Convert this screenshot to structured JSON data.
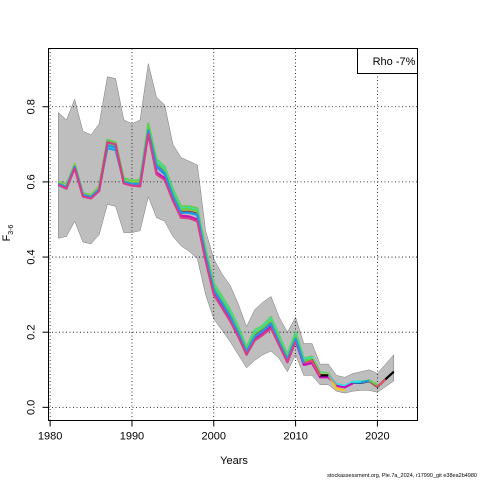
{
  "chart_data": {
    "type": "line",
    "title": "",
    "xlabel": "Years",
    "ylabel": "F",
    "ylabel_subscript": "3-6",
    "xlim": [
      1979.8,
      2024.9
    ],
    "ylim": [
      -0.035,
      0.955
    ],
    "x_ticks": [
      1980,
      1990,
      2000,
      2010,
      2020
    ],
    "y_ticks": [
      0.0,
      0.2,
      0.4,
      0.6,
      0.8
    ],
    "x_tick_labels": [
      "1980",
      "1990",
      "2000",
      "2010",
      "2020"
    ],
    "y_tick_labels": [
      "0.0",
      "0.2",
      "0.4",
      "0.6",
      "0.8"
    ],
    "grid": "dotted",
    "legend": {
      "text": "Rho -7%",
      "position": "top-right"
    },
    "confidence_band": {
      "color": "#bebebe",
      "x": [
        1981,
        1982,
        1983,
        1984,
        1985,
        1986,
        1987,
        1988,
        1989,
        1990,
        1991,
        1992,
        1993,
        1994,
        1995,
        1996,
        1997,
        1998,
        1999,
        2000,
        2001,
        2002,
        2003,
        2004,
        2005,
        2006,
        2007,
        2008,
        2009,
        2010,
        2011,
        2012,
        2013,
        2014,
        2015,
        2016,
        2017,
        2018,
        2019,
        2020,
        2021,
        2022
      ],
      "lower": [
        0.45,
        0.455,
        0.495,
        0.44,
        0.435,
        0.46,
        0.54,
        0.535,
        0.465,
        0.465,
        0.47,
        0.56,
        0.505,
        0.495,
        0.455,
        0.43,
        0.415,
        0.395,
        0.3,
        0.235,
        0.205,
        0.175,
        0.14,
        0.105,
        0.125,
        0.14,
        0.15,
        0.13,
        0.095,
        0.14,
        0.085,
        0.085,
        0.06,
        0.06,
        0.043,
        0.038,
        0.043,
        0.045,
        0.045,
        0.04,
        0.055,
        0.07
      ],
      "upper": [
        0.785,
        0.765,
        0.82,
        0.735,
        0.725,
        0.755,
        0.88,
        0.875,
        0.765,
        0.755,
        0.765,
        0.915,
        0.825,
        0.805,
        0.7,
        0.665,
        0.655,
        0.645,
        0.47,
        0.395,
        0.355,
        0.325,
        0.275,
        0.215,
        0.26,
        0.28,
        0.295,
        0.24,
        0.2,
        0.24,
        0.17,
        0.17,
        0.115,
        0.115,
        0.085,
        0.08,
        0.09,
        0.095,
        0.1,
        0.09,
        0.115,
        0.14
      ]
    },
    "series": [
      {
        "color": "#000000",
        "x": [
          1981,
          1982,
          1983,
          1984,
          1985,
          1986,
          1987,
          1988,
          1989,
          1990,
          1991,
          1992,
          1993,
          1994,
          1995,
          1996,
          1997,
          1998,
          1999,
          2000,
          2001,
          2002,
          2003,
          2004,
          2005,
          2006,
          2007,
          2008,
          2009,
          2010,
          2011,
          2012,
          2013,
          2014,
          2015,
          2016,
          2017,
          2018,
          2019,
          2020,
          2021,
          2022
        ],
        "values": [
          0.595,
          0.585,
          0.64,
          0.565,
          0.56,
          0.58,
          0.7,
          0.695,
          0.6,
          0.595,
          0.595,
          0.74,
          0.645,
          0.625,
          0.565,
          0.52,
          0.52,
          0.515,
          0.405,
          0.315,
          0.28,
          0.245,
          0.2,
          0.15,
          0.19,
          0.205,
          0.225,
          0.175,
          0.13,
          0.185,
          0.12,
          0.125,
          0.085,
          0.085,
          0.06,
          0.055,
          0.065,
          0.065,
          0.07,
          0.055,
          0.075,
          0.095
        ]
      },
      {
        "color": "#df536b",
        "x": [
          1981,
          1982,
          1983,
          1984,
          1985,
          1986,
          1987,
          1988,
          1989,
          1990,
          1991,
          1992,
          1993,
          1994,
          1995,
          1996,
          1997,
          1998,
          1999,
          2000,
          2001,
          2002,
          2003,
          2004,
          2005,
          2006,
          2007,
          2008,
          2009,
          2010,
          2011,
          2012,
          2013,
          2014,
          2015,
          2016,
          2017,
          2018,
          2019,
          2020,
          2021
        ],
        "values": [
          0.598,
          0.59,
          0.645,
          0.568,
          0.562,
          0.585,
          0.708,
          0.702,
          0.605,
          0.6,
          0.6,
          0.745,
          0.65,
          0.63,
          0.57,
          0.525,
          0.525,
          0.52,
          0.41,
          0.318,
          0.283,
          0.248,
          0.203,
          0.152,
          0.193,
          0.208,
          0.228,
          0.178,
          0.132,
          0.188,
          0.122,
          0.127,
          0.087,
          0.086,
          0.061,
          0.056,
          0.066,
          0.066,
          0.071,
          0.056,
          0.074
        ]
      },
      {
        "color": "#61d04f",
        "x": [
          1981,
          1982,
          1983,
          1984,
          1985,
          1986,
          1987,
          1988,
          1989,
          1990,
          1991,
          1992,
          1993,
          1994,
          1995,
          1996,
          1997,
          1998,
          1999,
          2000,
          2001,
          2002,
          2003,
          2004,
          2005,
          2006,
          2007,
          2008,
          2009,
          2010,
          2011,
          2012,
          2013,
          2014,
          2015,
          2016,
          2017,
          2018,
          2019,
          2020
        ],
        "values": [
          0.6,
          0.593,
          0.648,
          0.57,
          0.565,
          0.588,
          0.712,
          0.705,
          0.61,
          0.603,
          0.605,
          0.755,
          0.66,
          0.64,
          0.58,
          0.535,
          0.535,
          0.53,
          0.42,
          0.33,
          0.295,
          0.26,
          0.215,
          0.16,
          0.205,
          0.218,
          0.24,
          0.19,
          0.14,
          0.2,
          0.13,
          0.135,
          0.093,
          0.09,
          0.058,
          0.055,
          0.067,
          0.068,
          0.072,
          0.06
        ]
      },
      {
        "color": "#2297e6",
        "x": [
          1981,
          1982,
          1983,
          1984,
          1985,
          1986,
          1987,
          1988,
          1989,
          1990,
          1991,
          1992,
          1993,
          1994,
          1995,
          1996,
          1997,
          1998,
          1999,
          2000,
          2001,
          2002,
          2003,
          2004,
          2005,
          2006,
          2007,
          2008,
          2009,
          2010,
          2011,
          2012,
          2013,
          2014,
          2015,
          2016,
          2017,
          2018,
          2019
        ],
        "values": [
          0.596,
          0.587,
          0.642,
          0.566,
          0.561,
          0.582,
          0.69,
          0.685,
          0.602,
          0.597,
          0.597,
          0.735,
          0.64,
          0.62,
          0.562,
          0.518,
          0.518,
          0.512,
          0.402,
          0.312,
          0.277,
          0.243,
          0.198,
          0.148,
          0.188,
          0.203,
          0.222,
          0.173,
          0.128,
          0.182,
          0.118,
          0.123,
          0.083,
          0.083,
          0.059,
          0.055,
          0.066,
          0.066,
          0.071
        ]
      },
      {
        "color": "#28e2e5",
        "x": [
          1981,
          1982,
          1983,
          1984,
          1985,
          1986,
          1987,
          1988,
          1989,
          1990,
          1991,
          1992,
          1993,
          1994,
          1995,
          1996,
          1997,
          1998,
          1999,
          2000,
          2001,
          2002,
          2003,
          2004,
          2005,
          2006,
          2007,
          2008,
          2009,
          2010,
          2011,
          2012,
          2013,
          2014,
          2015,
          2016,
          2017,
          2018
        ],
        "values": [
          0.597,
          0.588,
          0.643,
          0.567,
          0.562,
          0.583,
          0.695,
          0.69,
          0.604,
          0.598,
          0.598,
          0.745,
          0.655,
          0.635,
          0.575,
          0.53,
          0.53,
          0.525,
          0.415,
          0.325,
          0.29,
          0.255,
          0.21,
          0.158,
          0.2,
          0.215,
          0.235,
          0.185,
          0.137,
          0.195,
          0.127,
          0.132,
          0.09,
          0.088,
          0.062,
          0.057,
          0.068,
          0.069
        ]
      },
      {
        "color": "#cd0bbc",
        "x": [
          1981,
          1982,
          1983,
          1984,
          1985,
          1986,
          1987,
          1988,
          1989,
          1990,
          1991,
          1992,
          1993,
          1994,
          1995,
          1996,
          1997,
          1998,
          1999,
          2000,
          2001,
          2002,
          2003,
          2004,
          2005,
          2006,
          2007,
          2008,
          2009,
          2010,
          2011,
          2012,
          2013,
          2014,
          2015,
          2016,
          2017
        ],
        "values": [
          0.594,
          0.584,
          0.638,
          0.563,
          0.558,
          0.578,
          0.698,
          0.692,
          0.598,
          0.592,
          0.59,
          0.73,
          0.625,
          0.61,
          0.555,
          0.51,
          0.508,
          0.5,
          0.395,
          0.305,
          0.27,
          0.235,
          0.192,
          0.143,
          0.182,
          0.197,
          0.215,
          0.168,
          0.123,
          0.178,
          0.113,
          0.118,
          0.08,
          0.08,
          0.057,
          0.053,
          0.064
        ]
      },
      {
        "color": "#f5c710",
        "x": [
          1981,
          1982,
          1983,
          1984,
          1985,
          1986,
          1987,
          1988,
          1989,
          1990,
          1991,
          1992,
          1993,
          1994,
          1995,
          1996,
          1997,
          1998,
          1999,
          2000,
          2001,
          2002,
          2003,
          2004,
          2005,
          2006,
          2007,
          2008,
          2009,
          2010,
          2011,
          2012,
          2013,
          2014,
          2015,
          2016
        ],
        "values": [
          0.597,
          0.589,
          0.644,
          0.567,
          0.562,
          0.584,
          0.702,
          0.697,
          0.603,
          0.598,
          0.598,
          0.742,
          0.648,
          0.628,
          0.568,
          0.523,
          0.523,
          0.518,
          0.408,
          0.318,
          0.283,
          0.248,
          0.203,
          0.153,
          0.193,
          0.208,
          0.228,
          0.178,
          0.133,
          0.188,
          0.123,
          0.128,
          0.088,
          0.087,
          0.05,
          0.045
        ]
      },
      {
        "color": "#9e9e9e",
        "x": [
          1981,
          1982,
          1983,
          1984,
          1985,
          1986,
          1987,
          1988,
          1989,
          1990,
          1991,
          1992,
          1993,
          1994,
          1995,
          1996,
          1997,
          1998,
          1999,
          2000,
          2001,
          2002,
          2003,
          2004,
          2005,
          2006,
          2007,
          2008,
          2009,
          2010,
          2011,
          2012,
          2013,
          2014,
          2015
        ],
        "values": [
          0.596,
          0.588,
          0.642,
          0.566,
          0.561,
          0.582,
          0.7,
          0.695,
          0.601,
          0.596,
          0.596,
          0.74,
          0.646,
          0.626,
          0.566,
          0.521,
          0.521,
          0.516,
          0.406,
          0.316,
          0.281,
          0.246,
          0.201,
          0.151,
          0.191,
          0.206,
          0.226,
          0.176,
          0.131,
          0.186,
          0.121,
          0.126,
          0.086,
          0.085,
          0.06
        ]
      },
      {
        "color": "#000000",
        "x": [
          1981,
          1982,
          1983,
          1984,
          1985,
          1986,
          1987,
          1988,
          1989,
          1990,
          1991,
          1992,
          1993,
          1994,
          1995,
          1996,
          1997,
          1998,
          1999,
          2000,
          2001,
          2002,
          2003,
          2004,
          2005,
          2006,
          2007,
          2008,
          2009,
          2010,
          2011,
          2012,
          2013,
          2014
        ],
        "values": [
          0.595,
          0.586,
          0.641,
          0.565,
          0.56,
          0.581,
          0.699,
          0.694,
          0.6,
          0.595,
          0.595,
          0.739,
          0.645,
          0.625,
          0.565,
          0.52,
          0.52,
          0.515,
          0.405,
          0.315,
          0.28,
          0.245,
          0.2,
          0.15,
          0.19,
          0.205,
          0.225,
          0.175,
          0.13,
          0.185,
          0.12,
          0.125,
          0.085,
          0.085
        ]
      },
      {
        "color": "#df536b",
        "x": [
          1981,
          1982,
          1983,
          1984,
          1985,
          1986,
          1987,
          1988,
          1989,
          1990,
          1991,
          1992,
          1993,
          1994,
          1995,
          1996,
          1997,
          1998,
          1999,
          2000,
          2001,
          2002,
          2003,
          2004,
          2005,
          2006,
          2007,
          2008,
          2009,
          2010,
          2011,
          2012,
          2013
        ],
        "values": [
          0.594,
          0.585,
          0.64,
          0.564,
          0.559,
          0.58,
          0.698,
          0.693,
          0.599,
          0.594,
          0.594,
          0.738,
          0.644,
          0.624,
          0.564,
          0.519,
          0.519,
          0.514,
          0.404,
          0.314,
          0.279,
          0.244,
          0.199,
          0.149,
          0.189,
          0.204,
          0.224,
          0.174,
          0.129,
          0.184,
          0.119,
          0.124,
          0.084
        ]
      },
      {
        "color": "#61d04f",
        "x": [
          1981,
          1982,
          1983,
          1984,
          1985,
          1986,
          1987,
          1988,
          1989,
          1990,
          1991,
          1992,
          1993,
          1994,
          1995,
          1996,
          1997,
          1998,
          1999,
          2000,
          2001,
          2002,
          2003,
          2004,
          2005,
          2006,
          2007,
          2008,
          2009,
          2010,
          2011,
          2012
        ],
        "values": [
          0.596,
          0.587,
          0.642,
          0.566,
          0.561,
          0.582,
          0.701,
          0.696,
          0.602,
          0.597,
          0.597,
          0.748,
          0.652,
          0.632,
          0.572,
          0.528,
          0.528,
          0.523,
          0.412,
          0.322,
          0.287,
          0.252,
          0.207,
          0.156,
          0.197,
          0.212,
          0.232,
          0.182,
          0.135,
          0.192,
          0.124,
          0.13
        ]
      },
      {
        "color": "#2297e6",
        "x": [
          1981,
          1982,
          1983,
          1984,
          1985,
          1986,
          1987,
          1988,
          1989,
          1990,
          1991,
          1992,
          1993,
          1994,
          1995,
          1996,
          1997,
          1998,
          1999,
          2000,
          2001,
          2002,
          2003,
          2004,
          2005,
          2006,
          2007,
          2008,
          2009,
          2010,
          2011
        ],
        "values": [
          0.595,
          0.586,
          0.641,
          0.565,
          0.56,
          0.581,
          0.697,
          0.692,
          0.6,
          0.595,
          0.595,
          0.737,
          0.643,
          0.623,
          0.563,
          0.518,
          0.518,
          0.513,
          0.403,
          0.313,
          0.278,
          0.243,
          0.198,
          0.148,
          0.188,
          0.203,
          0.223,
          0.173,
          0.128,
          0.183,
          0.118
        ]
      },
      {
        "color": "#d63c8a",
        "x": [
          1981,
          1982,
          1983,
          1984,
          1985,
          1986,
          1987,
          1988,
          1989,
          1990,
          1991,
          1992,
          1993,
          1994,
          1995,
          1996,
          1997,
          1998,
          1999,
          2000,
          2001,
          2002,
          2003,
          2004,
          2005,
          2006,
          2007,
          2008,
          2009,
          2010
        ],
        "values": [
          0.592,
          0.582,
          0.636,
          0.561,
          0.556,
          0.576,
          0.705,
          0.7,
          0.596,
          0.59,
          0.588,
          0.728,
          0.62,
          0.605,
          0.55,
          0.505,
          0.503,
          0.495,
          0.39,
          0.3,
          0.265,
          0.23,
          0.188,
          0.14,
          0.178,
          0.193,
          0.21,
          0.165,
          0.12,
          0.175
        ]
      }
    ]
  },
  "footer_text": "stockassessment.org, Ple.7a_2024, r17990_git e38ea2b4980"
}
